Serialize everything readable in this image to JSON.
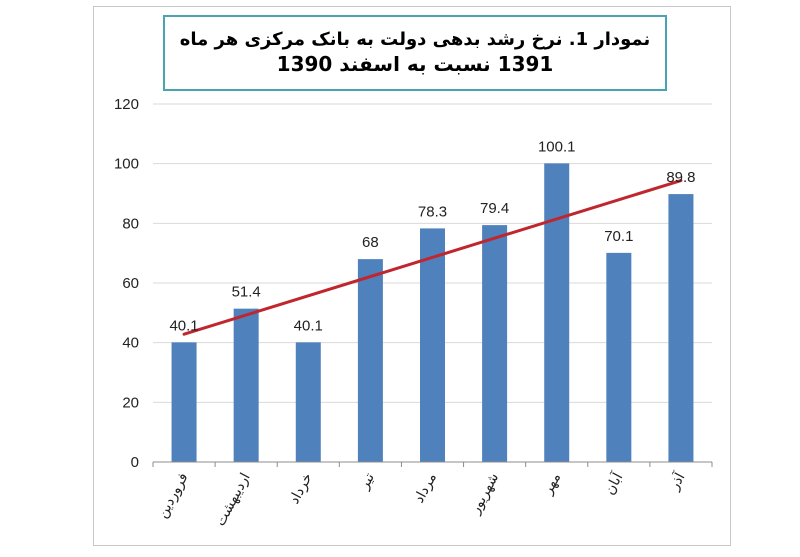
{
  "title_box": {
    "line1": "نمودار 1. نرخ رشد بدهی دولت به بانک مرکزی هر ماه",
    "line2": "1391 نسبت به اسفند 1390"
  },
  "chart_data": {
    "type": "bar",
    "title": "نمودار 1. نرخ رشد بدهی دولت به بانک مرکزی هر ماه 1391 نسبت به اسفند 1390",
    "categories": [
      "فروردین",
      "اردیبهشت",
      "خرداد",
      "تیر",
      "مرداد",
      "شهریور",
      "مهر",
      "آبان",
      "آذر"
    ],
    "series": [
      {
        "values": [
          40.1,
          51.4,
          40.1,
          68,
          78.3,
          79.4,
          100.1,
          70.1,
          89.8
        ],
        "color": "#4f81bd"
      }
    ],
    "data_labels": [
      "40.1",
      "51.4",
      "40.1",
      "68",
      "78.3",
      "79.4",
      "100.1",
      "70.1",
      "89.8"
    ],
    "trendline": {
      "type": "linear",
      "color": "#c0262d"
    },
    "ylim": [
      0,
      120
    ],
    "yticks": [
      0,
      20,
      40,
      60,
      80,
      100,
      120
    ],
    "grid": true,
    "legend": "none",
    "xlabel": "",
    "ylabel": ""
  }
}
